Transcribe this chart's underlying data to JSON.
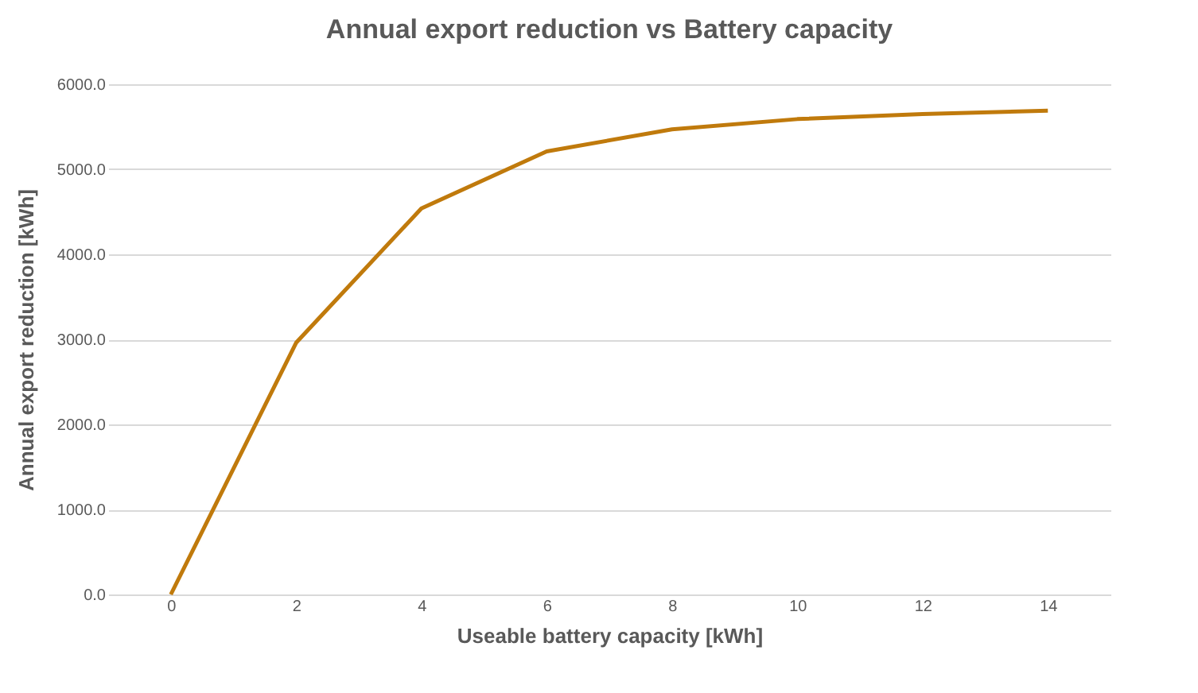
{
  "chart_data": {
    "type": "line",
    "title": "Annual export reduction vs Battery capacity",
    "xlabel": "Useable battery capacity [kWh]",
    "ylabel": "Annual export reduction [kWh]",
    "categories": [
      "0",
      "2",
      "4",
      "6",
      "8",
      "10",
      "12",
      "14"
    ],
    "series": [
      {
        "color": "#c07a0c",
        "values": [
          0,
          2960,
          4540,
          5210,
          5470,
          5590,
          5650,
          5690
        ]
      }
    ],
    "ylim": [
      0,
      6000
    ],
    "yticks": [
      {
        "value": 0,
        "label": "0.0"
      },
      {
        "value": 1000,
        "label": "1000.0"
      },
      {
        "value": 2000,
        "label": "2000.0"
      },
      {
        "value": 3000,
        "label": "3000.0"
      },
      {
        "value": 4000,
        "label": "4000.0"
      },
      {
        "value": 5000,
        "label": "5000.0"
      },
      {
        "value": 6000,
        "label": "6000.0"
      }
    ],
    "grid": "y",
    "marker": "none",
    "line_style": "solid"
  }
}
